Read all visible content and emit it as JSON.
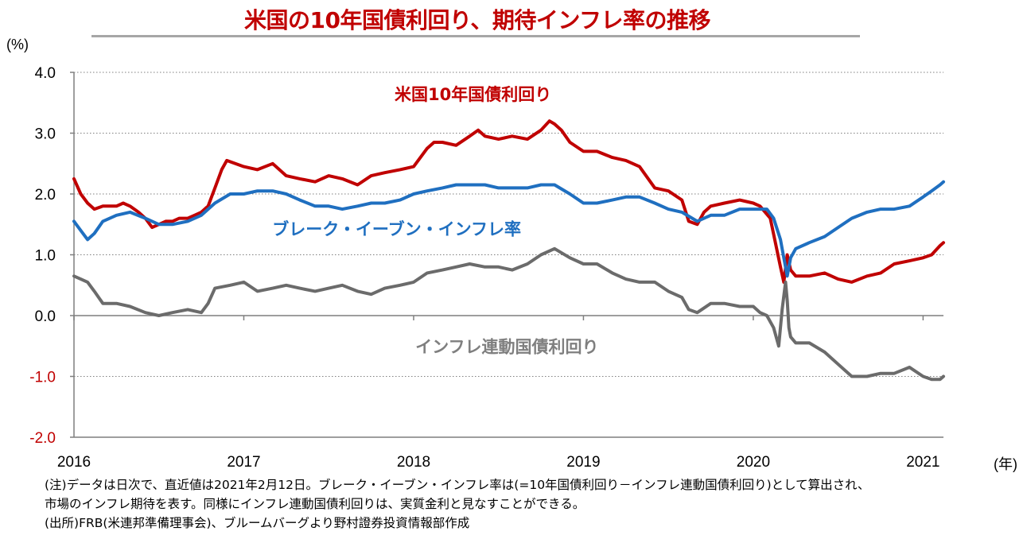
{
  "chart_data": {
    "type": "line",
    "title": "米国の10年国債利回り、期待インフレ率の推移",
    "ylabel": "(%)",
    "xlabel": "(年)",
    "ylim": [
      -2.0,
      4.0
    ],
    "yticks": [
      "4.0",
      "3.0",
      "2.0",
      "1.0",
      "0.0",
      "-1.0",
      "-2.0"
    ],
    "yticks_values": [
      4.0,
      3.0,
      2.0,
      1.0,
      0.0,
      -1.0,
      -2.0
    ],
    "negative_tick_color": "#c00000",
    "xlim": [
      2016.0,
      2021.12
    ],
    "xticks": [
      "2016",
      "2017",
      "2018",
      "2019",
      "2020",
      "2021"
    ],
    "xticks_values": [
      2016,
      2017,
      2018,
      2019,
      2020,
      2021
    ],
    "grid": true,
    "series": [
      {
        "name": "米国10年国債利回り",
        "color": "#c00000",
        "label_color": "#c00000",
        "x": [
          2016.0,
          2016.04,
          2016.08,
          2016.12,
          2016.17,
          2016.21,
          2016.25,
          2016.29,
          2016.33,
          2016.38,
          2016.42,
          2016.46,
          2016.5,
          2016.54,
          2016.58,
          2016.62,
          2016.67,
          2016.71,
          2016.75,
          2016.79,
          2016.83,
          2016.87,
          2016.9,
          2016.95,
          2017.0,
          2017.08,
          2017.17,
          2017.25,
          2017.33,
          2017.42,
          2017.5,
          2017.58,
          2017.67,
          2017.75,
          2017.83,
          2017.92,
          2018.0,
          2018.08,
          2018.12,
          2018.17,
          2018.25,
          2018.33,
          2018.38,
          2018.42,
          2018.5,
          2018.58,
          2018.67,
          2018.75,
          2018.8,
          2018.83,
          2018.87,
          2018.92,
          2019.0,
          2019.08,
          2019.17,
          2019.25,
          2019.33,
          2019.42,
          2019.5,
          2019.58,
          2019.62,
          2019.67,
          2019.71,
          2019.75,
          2019.83,
          2019.92,
          2020.0,
          2020.04,
          2020.1,
          2020.13,
          2020.16,
          2020.18,
          2020.2,
          2020.22,
          2020.25,
          2020.33,
          2020.42,
          2020.5,
          2020.58,
          2020.67,
          2020.75,
          2020.83,
          2020.92,
          2021.0,
          2021.05,
          2021.1,
          2021.12
        ],
        "values": [
          2.25,
          2.0,
          1.85,
          1.75,
          1.8,
          1.8,
          1.8,
          1.85,
          1.8,
          1.7,
          1.6,
          1.45,
          1.5,
          1.55,
          1.55,
          1.6,
          1.6,
          1.65,
          1.7,
          1.8,
          2.1,
          2.4,
          2.55,
          2.5,
          2.45,
          2.4,
          2.5,
          2.3,
          2.25,
          2.2,
          2.3,
          2.25,
          2.15,
          2.3,
          2.35,
          2.4,
          2.45,
          2.75,
          2.85,
          2.85,
          2.8,
          2.95,
          3.05,
          2.95,
          2.9,
          2.95,
          2.9,
          3.05,
          3.2,
          3.15,
          3.05,
          2.85,
          2.7,
          2.7,
          2.6,
          2.55,
          2.45,
          2.1,
          2.05,
          1.9,
          1.55,
          1.5,
          1.7,
          1.8,
          1.85,
          1.9,
          1.85,
          1.8,
          1.6,
          1.2,
          0.8,
          0.55,
          1.0,
          0.75,
          0.65,
          0.65,
          0.7,
          0.6,
          0.55,
          0.65,
          0.7,
          0.85,
          0.9,
          0.95,
          1.0,
          1.15,
          1.2
        ]
      },
      {
        "name": "ブレーク・イーブン・インフレ率",
        "color": "#1f6fc0",
        "label_color": "#1f6fc0",
        "x": [
          2016.0,
          2016.04,
          2016.08,
          2016.12,
          2016.17,
          2016.25,
          2016.33,
          2016.42,
          2016.5,
          2016.58,
          2016.67,
          2016.75,
          2016.83,
          2016.92,
          2017.0,
          2017.08,
          2017.17,
          2017.25,
          2017.33,
          2017.42,
          2017.5,
          2017.58,
          2017.67,
          2017.75,
          2017.83,
          2017.92,
          2018.0,
          2018.08,
          2018.17,
          2018.25,
          2018.33,
          2018.42,
          2018.5,
          2018.58,
          2018.67,
          2018.75,
          2018.83,
          2018.92,
          2019.0,
          2019.08,
          2019.17,
          2019.25,
          2019.33,
          2019.42,
          2019.5,
          2019.58,
          2019.67,
          2019.75,
          2019.83,
          2019.92,
          2020.0,
          2020.08,
          2020.12,
          2020.16,
          2020.18,
          2020.2,
          2020.22,
          2020.25,
          2020.33,
          2020.42,
          2020.5,
          2020.58,
          2020.67,
          2020.75,
          2020.83,
          2020.92,
          2021.0,
          2021.05,
          2021.1,
          2021.12
        ],
        "values": [
          1.55,
          1.4,
          1.25,
          1.35,
          1.55,
          1.65,
          1.7,
          1.6,
          1.5,
          1.5,
          1.55,
          1.65,
          1.85,
          2.0,
          2.0,
          2.05,
          2.05,
          2.0,
          1.9,
          1.8,
          1.8,
          1.75,
          1.8,
          1.85,
          1.85,
          1.9,
          2.0,
          2.05,
          2.1,
          2.15,
          2.15,
          2.15,
          2.1,
          2.1,
          2.1,
          2.15,
          2.15,
          2.0,
          1.85,
          1.85,
          1.9,
          1.95,
          1.95,
          1.85,
          1.75,
          1.7,
          1.55,
          1.65,
          1.65,
          1.75,
          1.75,
          1.75,
          1.6,
          1.25,
          0.95,
          0.65,
          0.95,
          1.1,
          1.2,
          1.3,
          1.45,
          1.6,
          1.7,
          1.75,
          1.75,
          1.8,
          1.95,
          2.05,
          2.15,
          2.2
        ]
      },
      {
        "name": "インフレ連動国債利回り",
        "color": "#6b6b6b",
        "label_color": "#7f7f7f",
        "x": [
          2016.0,
          2016.04,
          2016.08,
          2016.12,
          2016.17,
          2016.25,
          2016.33,
          2016.42,
          2016.5,
          2016.58,
          2016.67,
          2016.75,
          2016.79,
          2016.83,
          2016.92,
          2017.0,
          2017.08,
          2017.17,
          2017.25,
          2017.33,
          2017.42,
          2017.5,
          2017.58,
          2017.67,
          2017.75,
          2017.83,
          2017.92,
          2018.0,
          2018.08,
          2018.17,
          2018.25,
          2018.33,
          2018.42,
          2018.5,
          2018.58,
          2018.67,
          2018.75,
          2018.83,
          2018.92,
          2019.0,
          2019.08,
          2019.17,
          2019.25,
          2019.33,
          2019.42,
          2019.5,
          2019.58,
          2019.62,
          2019.67,
          2019.75,
          2019.83,
          2019.92,
          2020.0,
          2020.04,
          2020.08,
          2020.12,
          2020.15,
          2020.17,
          2020.19,
          2020.2,
          2020.21,
          2020.22,
          2020.25,
          2020.33,
          2020.42,
          2020.5,
          2020.58,
          2020.67,
          2020.75,
          2020.83,
          2020.92,
          2021.0,
          2021.05,
          2021.1,
          2021.12
        ],
        "values": [
          0.65,
          0.6,
          0.55,
          0.4,
          0.2,
          0.2,
          0.15,
          0.05,
          0.0,
          0.05,
          0.1,
          0.05,
          0.2,
          0.45,
          0.5,
          0.55,
          0.4,
          0.45,
          0.5,
          0.45,
          0.4,
          0.45,
          0.5,
          0.4,
          0.35,
          0.45,
          0.5,
          0.55,
          0.7,
          0.75,
          0.8,
          0.85,
          0.8,
          0.8,
          0.75,
          0.85,
          1.0,
          1.1,
          0.95,
          0.85,
          0.85,
          0.7,
          0.6,
          0.55,
          0.55,
          0.4,
          0.3,
          0.1,
          0.05,
          0.2,
          0.2,
          0.15,
          0.15,
          0.05,
          0.0,
          -0.2,
          -0.5,
          0.1,
          0.55,
          0.25,
          -0.2,
          -0.35,
          -0.45,
          -0.45,
          -0.6,
          -0.8,
          -1.0,
          -1.0,
          -0.95,
          -0.95,
          -0.85,
          -1.0,
          -1.05,
          -1.05,
          -1.0
        ]
      }
    ],
    "annotations": [
      {
        "id": "nominal",
        "text": "米国10年国債利回り",
        "x": 2018.35,
        "y": 3.65,
        "color": "#c00000"
      },
      {
        "id": "bei",
        "text": "ブレーク・イーブン・インフレ率",
        "x": 2017.9,
        "y": 1.43,
        "color": "#1f6fc0"
      },
      {
        "id": "tips",
        "text": "インフレ連動国債利回り",
        "x": 2018.55,
        "y": -0.5,
        "color": "#7f7f7f"
      }
    ]
  },
  "notes": {
    "line1": "(注)データは日次で、直近値は2021年2月12日。ブレーク・イーブン・インフレ率は(=10年国債利回り－インフレ連動国債利回り)として算出され、",
    "line2": "市場のインフレ期待を表す。同様にインフレ連動国債利回りは、実質金利と見なすことができる。",
    "line3": "(出所)FRB(米連邦準備理事会)、ブルームバーグより野村證券投資情報部作成"
  }
}
